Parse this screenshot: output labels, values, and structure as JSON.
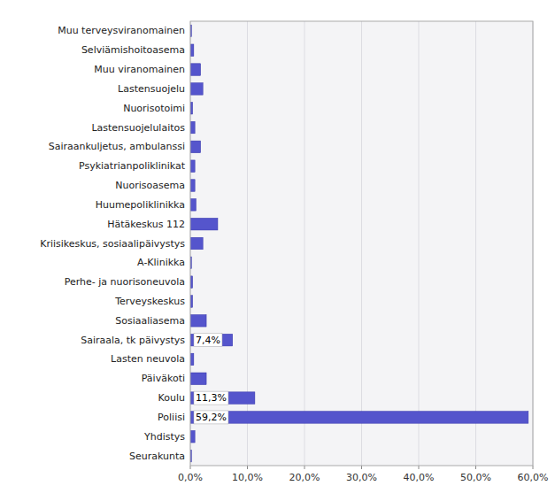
{
  "chart_data": {
    "type": "bar",
    "orientation": "horizontal",
    "categories": [
      "Seurakunta",
      "Yhdistys",
      "Poliisi",
      "Koulu",
      "Päiväkoti",
      "Lasten neuvola",
      "Sairaala, tk päivystys",
      "Sosiaaliasema",
      "Terveyskeskus",
      "Perhe- ja nuorisoneuvola",
      "A-Klinikka",
      "Kriisikeskus, sosiaalipäivystys",
      "Hätäkeskus 112",
      "Huumepoliklinikka",
      "Nuorisoasema",
      "Psykiatrianpoliklinikat",
      "Sairaankuljetus, ambulanssi",
      "Lastensuojelulaitos",
      "Nuorisotoimi",
      "Lastensuojelu",
      "Muu viranomainen",
      "Selviämishoitoasema",
      "Muu terveysviranomainen"
    ],
    "values": [
      0.2,
      0.8,
      59.2,
      11.3,
      2.8,
      0.6,
      7.4,
      2.8,
      0.4,
      0.4,
      0.2,
      2.2,
      4.8,
      1.0,
      0.8,
      0.8,
      1.8,
      0.8,
      0.4,
      2.2,
      1.8,
      0.6,
      0.2
    ],
    "value_labels": [
      null,
      null,
      "59,2%",
      "11,3%",
      null,
      null,
      "7,4%",
      null,
      null,
      null,
      null,
      null,
      null,
      null,
      null,
      null,
      null,
      null,
      null,
      null,
      null,
      null,
      null
    ],
    "data_labels": true,
    "color": "#5555cc",
    "xlim": [
      0,
      60
    ],
    "xticks": [
      {
        "value": 0,
        "label": "0,0%"
      },
      {
        "value": 10,
        "label": "10,0%"
      },
      {
        "value": 20,
        "label": "20,0%"
      },
      {
        "value": 30,
        "label": "30,0%"
      },
      {
        "value": 40,
        "label": "40,0%"
      },
      {
        "value": 50,
        "label": "50,0%"
      },
      {
        "value": 60,
        "label": "60,0%"
      }
    ],
    "grid": true
  }
}
